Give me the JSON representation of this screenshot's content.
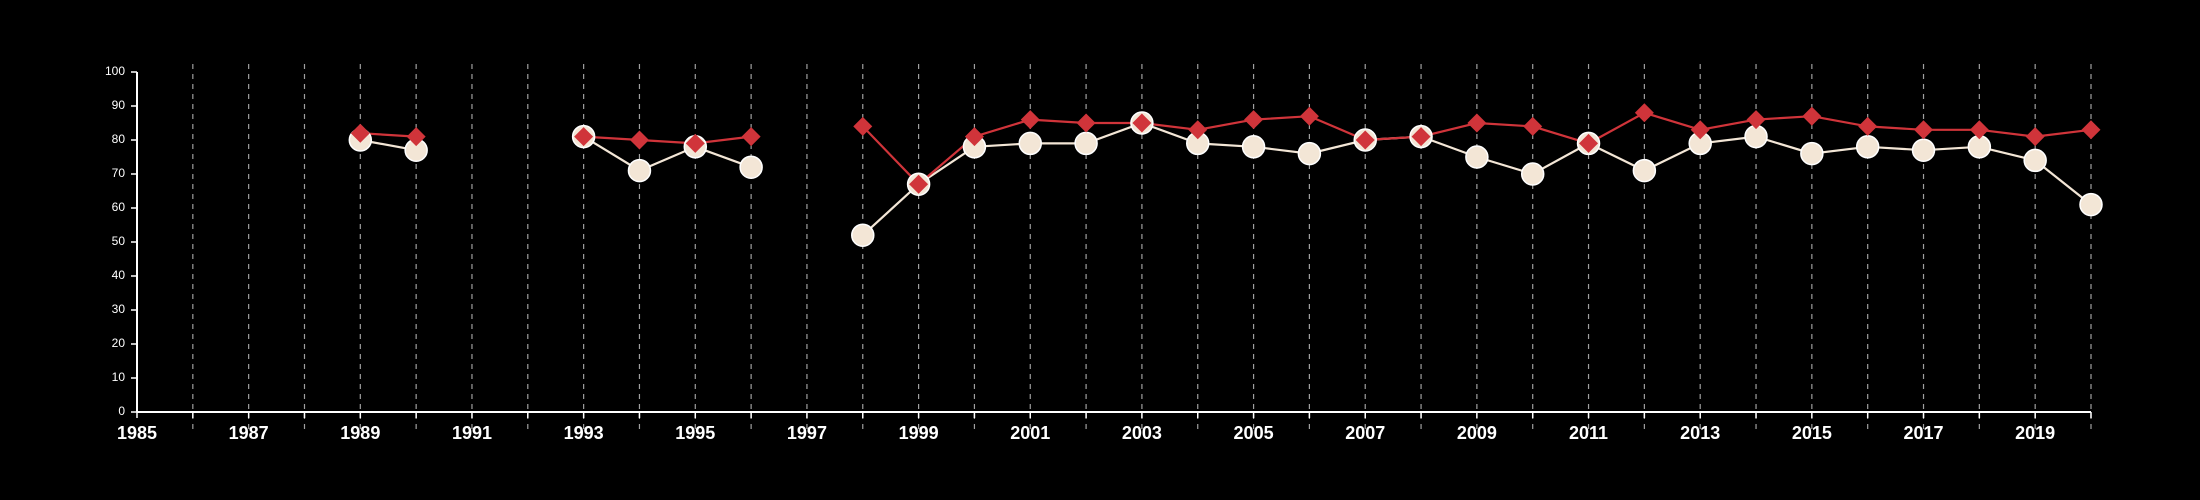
{
  "chart_data": {
    "type": "line",
    "title": "",
    "xlabel": "",
    "ylabel": "",
    "xlim": [
      1985,
      2020
    ],
    "ylim": [
      0,
      100
    ],
    "x_tick_labels": [
      "1985",
      "1987",
      "1989",
      "1991",
      "1993",
      "1995",
      "1997",
      "1999",
      "2001",
      "2003",
      "2005",
      "2007",
      "2009",
      "2011",
      "2013",
      "2015",
      "2017",
      "2019"
    ],
    "y_tick_labels": [
      "0",
      "10",
      "20",
      "30",
      "40",
      "50",
      "60",
      "70",
      "80",
      "90",
      "100"
    ],
    "vertical_gridlines": "dashed at every year",
    "legend": "none",
    "x": [
      1985,
      1986,
      1987,
      1988,
      1989,
      1990,
      1991,
      1992,
      1993,
      1994,
      1995,
      1996,
      1997,
      1998,
      1999,
      2000,
      2001,
      2002,
      2003,
      2004,
      2005,
      2006,
      2007,
      2008,
      2009,
      2010,
      2011,
      2012,
      2013,
      2014,
      2015,
      2016,
      2017,
      2018,
      2019,
      2020
    ],
    "series": [
      {
        "marker": "diamond",
        "color": "#d0343a",
        "values": [
          null,
          null,
          null,
          null,
          82,
          81,
          null,
          null,
          81,
          80,
          79,
          81,
          null,
          84,
          67,
          81,
          86,
          85,
          85,
          83,
          86,
          87,
          80,
          81,
          85,
          84,
          79,
          88,
          83,
          86,
          87,
          84,
          83,
          83,
          81,
          83
        ]
      },
      {
        "marker": "circle",
        "color": "#f3e6d6",
        "values": [
          null,
          null,
          null,
          null,
          80,
          77,
          null,
          null,
          81,
          71,
          78,
          72,
          null,
          52,
          67,
          78,
          79,
          79,
          85,
          79,
          78,
          76,
          80,
          81,
          75,
          70,
          79,
          71,
          79,
          81,
          76,
          78,
          77,
          78,
          74,
          61
        ]
      }
    ]
  }
}
